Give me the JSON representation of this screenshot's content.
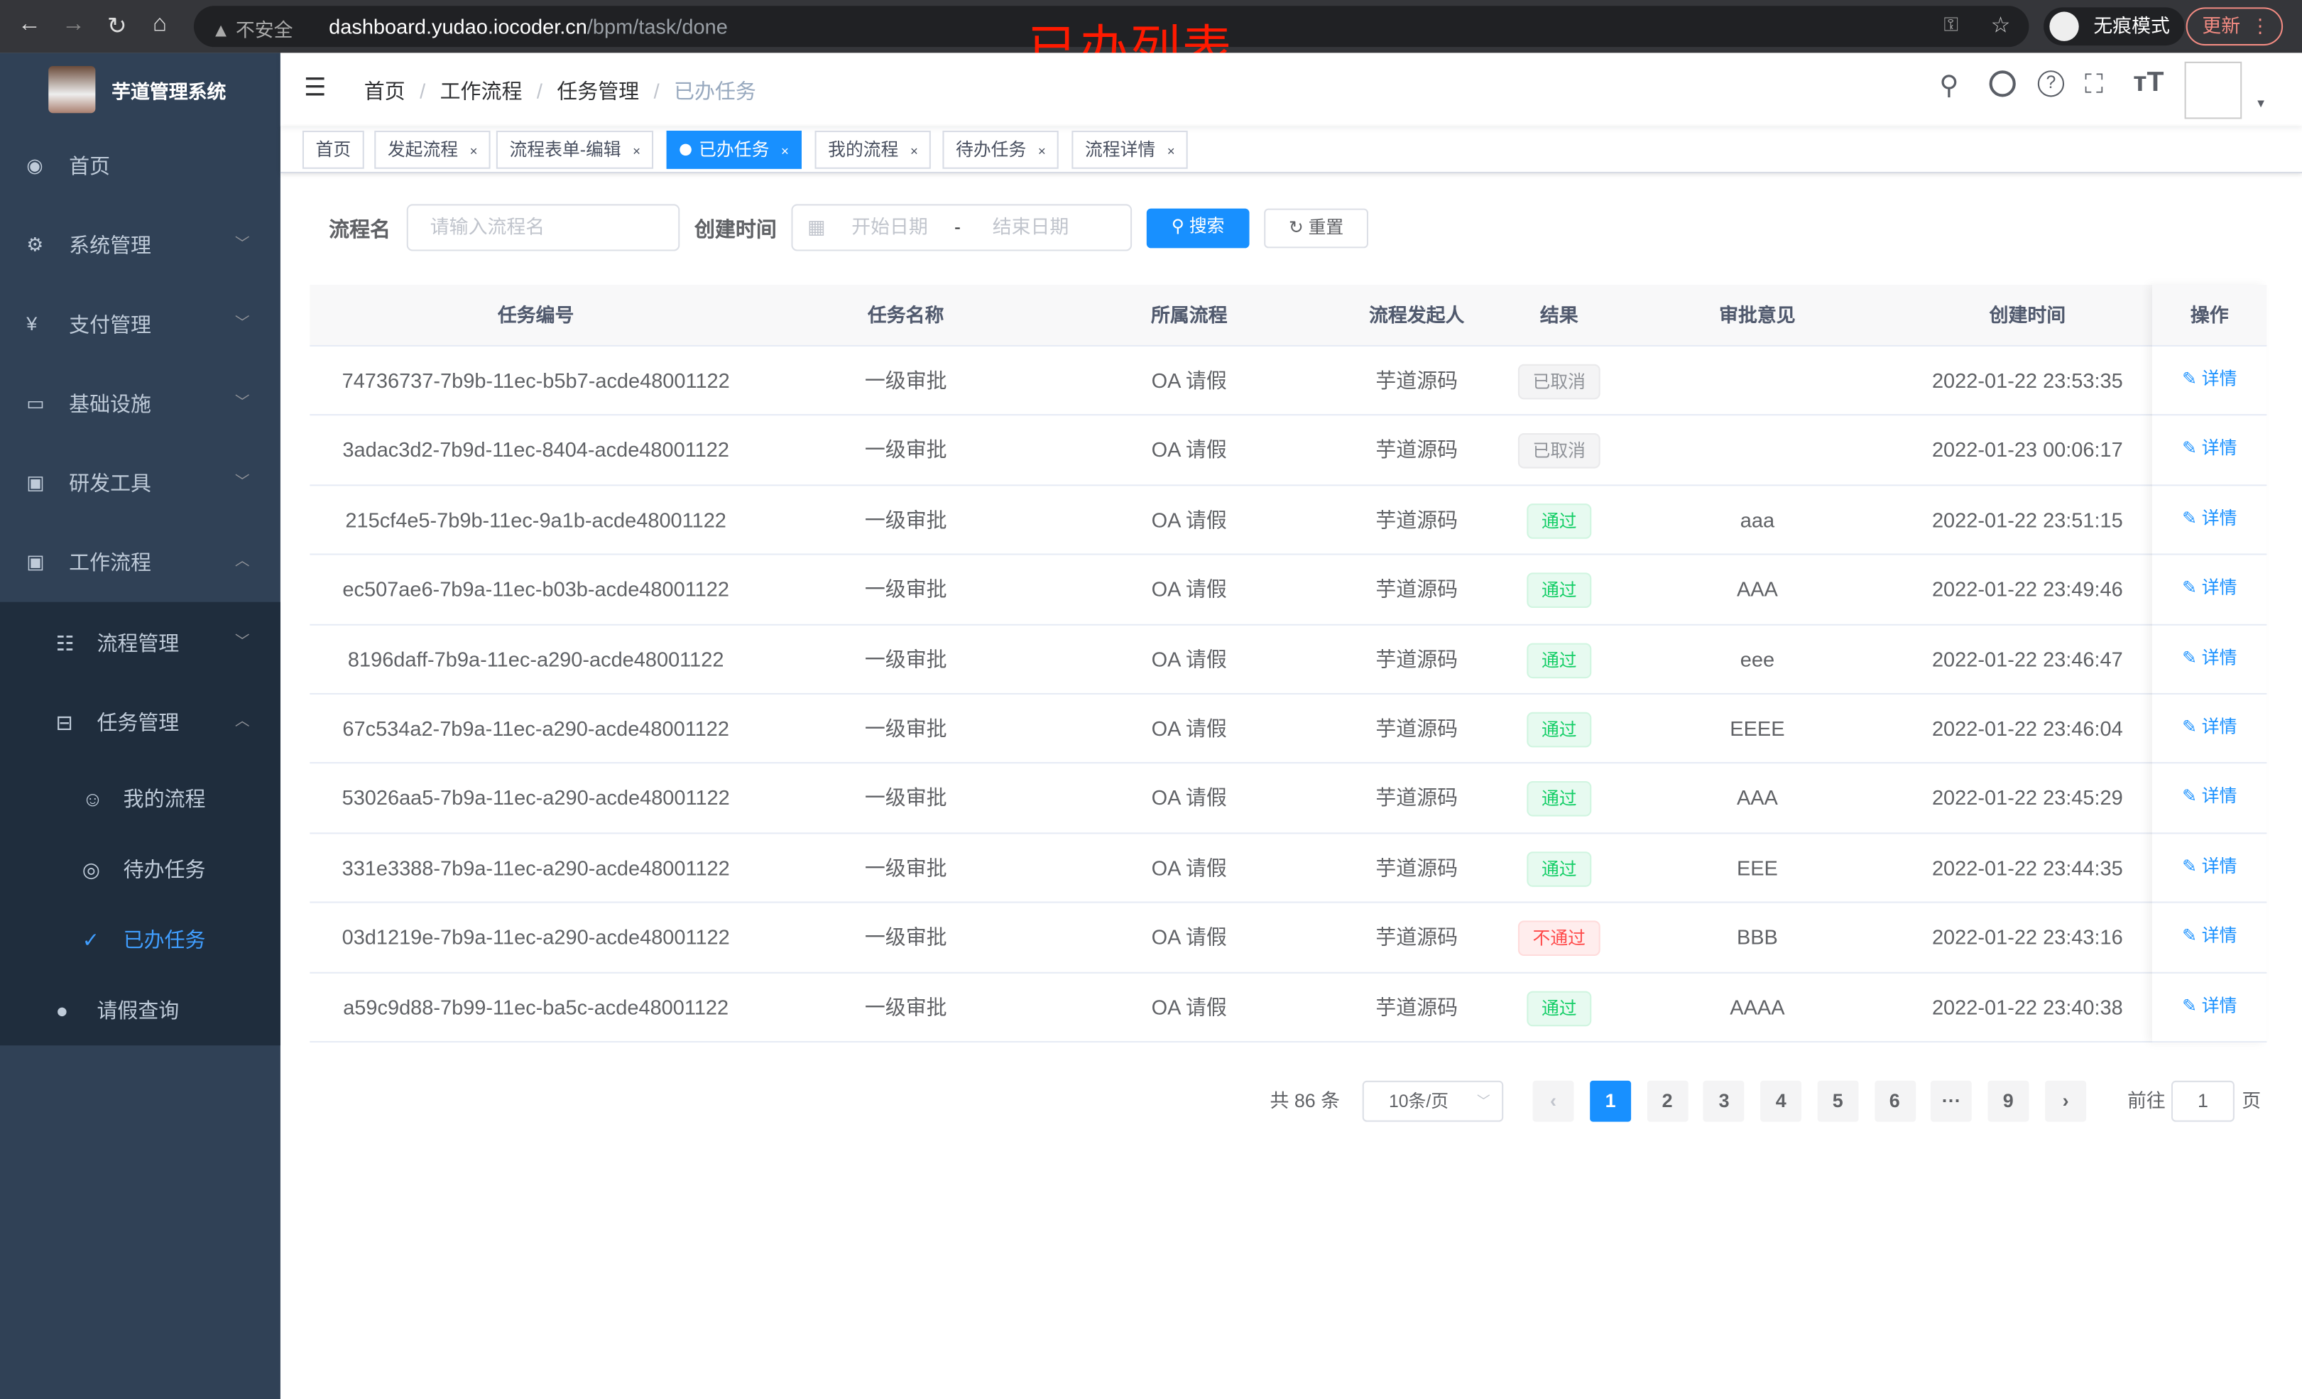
{
  "browser": {
    "security": "不安全",
    "url_host": "dashboard.yudao.iocoder.cn",
    "url_path": "/bpm/task/done",
    "incognito": "无痕模式",
    "update": "更新"
  },
  "annotation": "已办列表",
  "sidebar": {
    "title": "芋道管理系统",
    "items": [
      {
        "label": "首页",
        "icon": "dashboard-icon",
        "chev": ""
      },
      {
        "label": "系统管理",
        "icon": "gear-icon",
        "chev": "﹀"
      },
      {
        "label": "支付管理",
        "icon": "yen-icon",
        "chev": "﹀"
      },
      {
        "label": "基础设施",
        "icon": "monitor-icon",
        "chev": "﹀"
      },
      {
        "label": "研发工具",
        "icon": "toolbox-icon",
        "chev": "﹀"
      },
      {
        "label": "工作流程",
        "icon": "toolbox-icon",
        "chev": "︿"
      }
    ],
    "sub": [
      {
        "label": "流程管理",
        "icon": "list-icon",
        "chev": "﹀",
        "indent": 1
      },
      {
        "label": "任务管理",
        "icon": "tree-icon",
        "chev": "︿",
        "indent": 1
      },
      {
        "label": "我的流程",
        "icon": "user-icon",
        "chev": "",
        "indent": 2
      },
      {
        "label": "待办任务",
        "icon": "eye-icon",
        "chev": "",
        "indent": 2
      },
      {
        "label": "已办任务",
        "icon": "finished-icon",
        "chev": "",
        "indent": 2,
        "active": true
      },
      {
        "label": "请假查询",
        "icon": "person-icon",
        "chev": "",
        "indent": 1
      }
    ]
  },
  "breadcrumb": [
    "首页",
    "工作流程",
    "任务管理",
    "已办任务"
  ],
  "tags": [
    {
      "label": "首页"
    },
    {
      "label": "发起流程",
      "close": "×"
    },
    {
      "label": "流程表单-编辑",
      "close": "×"
    },
    {
      "label": "已办任务",
      "close": "×",
      "active": true
    },
    {
      "label": "我的流程",
      "close": "×"
    },
    {
      "label": "待办任务",
      "close": "×"
    },
    {
      "label": "流程详情",
      "close": "×"
    }
  ],
  "filter": {
    "name_label": "流程名",
    "name_placeholder": "请输入流程名",
    "time_label": "创建时间",
    "start_placeholder": "开始日期",
    "sep": "-",
    "end_placeholder": "结束日期",
    "search": "搜索",
    "reset": "重置"
  },
  "table": {
    "headers": [
      "任务编号",
      "任务名称",
      "所属流程",
      "流程发起人",
      "结果",
      "审批意见",
      "创建时间",
      "操作"
    ],
    "action": "详情",
    "rows": [
      [
        "74736737-7b9b-11ec-b5b7-acde48001122",
        "一级审批",
        "OA 请假",
        "芋道源码",
        "已取消",
        "",
        "2022-01-22 23:53:35"
      ],
      [
        "3adac3d2-7b9d-11ec-8404-acde48001122",
        "一级审批",
        "OA 请假",
        "芋道源码",
        "已取消",
        "",
        "2022-01-23 00:06:17"
      ],
      [
        "215cf4e5-7b9b-11ec-9a1b-acde48001122",
        "一级审批",
        "OA 请假",
        "芋道源码",
        "通过",
        "aaa",
        "2022-01-22 23:51:15"
      ],
      [
        "ec507ae6-7b9a-11ec-b03b-acde48001122",
        "一级审批",
        "OA 请假",
        "芋道源码",
        "通过",
        "AAA",
        "2022-01-22 23:49:46"
      ],
      [
        "8196daff-7b9a-11ec-a290-acde48001122",
        "一级审批",
        "OA 请假",
        "芋道源码",
        "通过",
        "eee",
        "2022-01-22 23:46:47"
      ],
      [
        "67c534a2-7b9a-11ec-a290-acde48001122",
        "一级审批",
        "OA 请假",
        "芋道源码",
        "通过",
        "EEEE",
        "2022-01-22 23:46:04"
      ],
      [
        "53026aa5-7b9a-11ec-a290-acde48001122",
        "一级审批",
        "OA 请假",
        "芋道源码",
        "通过",
        "AAA",
        "2022-01-22 23:45:29"
      ],
      [
        "331e3388-7b9a-11ec-a290-acde48001122",
        "一级审批",
        "OA 请假",
        "芋道源码",
        "通过",
        "EEE",
        "2022-01-22 23:44:35"
      ],
      [
        "03d1219e-7b9a-11ec-a290-acde48001122",
        "一级审批",
        "OA 请假",
        "芋道源码",
        "不通过",
        "BBB",
        "2022-01-22 23:43:16"
      ],
      [
        "a59c9d88-7b99-11ec-ba5c-acde48001122",
        "一级审批",
        "OA 请假",
        "芋道源码",
        "通过",
        "AAAA",
        "2022-01-22 23:40:38"
      ]
    ]
  },
  "pagination": {
    "total": "共 86 条",
    "page_size": "10条/页",
    "pages": [
      "1",
      "2",
      "3",
      "4",
      "5",
      "6",
      "···",
      "9"
    ],
    "current": "1",
    "goto_label": "前往",
    "goto_value": "1",
    "goto_unit": "页"
  },
  "colors": {
    "sidebar": "#304156",
    "submenu": "#1f2d3d",
    "primary": "#1890ff",
    "success": "#13ce66",
    "danger": "#ff4949",
    "info": "#909399"
  }
}
